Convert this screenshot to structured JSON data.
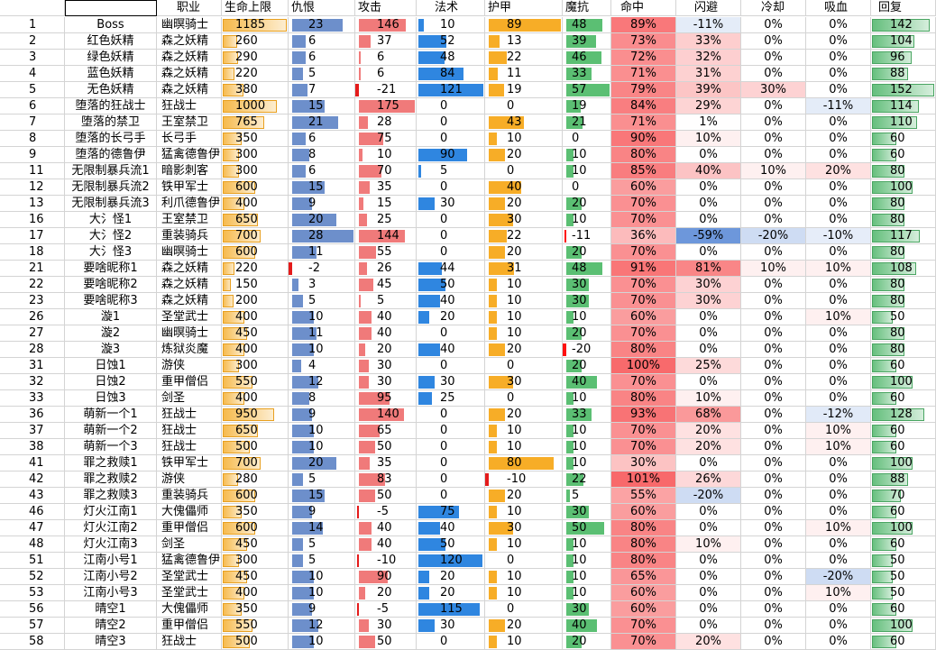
{
  "headers": [
    "",
    "",
    "职业",
    "生命上限",
    "仇恨",
    "攻击",
    "法术",
    "护甲",
    "魔抗",
    "命中",
    "闪避",
    "冷却",
    "吸血",
    "回复"
  ],
  "colors": {
    "hp": "#f6b94a",
    "threat": "#6d8fcb",
    "atk_pos": "#f07a7a",
    "atk_neg": "#e41b1b",
    "magic": "#2f86e0",
    "armor": "#f7ad27",
    "mres_pos": "#5bbf73",
    "mres_neg": "#ff1010",
    "pos_scale": "#f8696b",
    "neg_scale": "#5a8ad6",
    "regen": "#63be7b"
  },
  "rows": [
    {
      "id": "1",
      "name": "Boss",
      "cls": "幽暝骑士",
      "hp": 1185,
      "threat": 23,
      "atk": 146,
      "magic": 10,
      "armor": 89,
      "mres": 48,
      "hit": "89%",
      "hitv": 89,
      "dodge": "-11%",
      "dodgev": -11,
      "cd": "0%",
      "cdv": 0,
      "ls": "0%",
      "lsv": 0,
      "regen": 142
    },
    {
      "id": "2",
      "name": "红色妖精",
      "cls": "森之妖精",
      "hp": 260,
      "threat": 6,
      "atk": 37,
      "magic": 52,
      "armor": 13,
      "mres": 39,
      "hit": "73%",
      "hitv": 73,
      "dodge": "33%",
      "dodgev": 33,
      "cd": "0%",
      "cdv": 0,
      "ls": "0%",
      "lsv": 0,
      "regen": 104
    },
    {
      "id": "3",
      "name": "绿色妖精",
      "cls": "森之妖精",
      "hp": 290,
      "threat": 6,
      "atk": 6,
      "magic": 48,
      "armor": 22,
      "mres": 46,
      "hit": "72%",
      "hitv": 72,
      "dodge": "32%",
      "dodgev": 32,
      "cd": "0%",
      "cdv": 0,
      "ls": "0%",
      "lsv": 0,
      "regen": 96
    },
    {
      "id": "4",
      "name": "蓝色妖精",
      "cls": "森之妖精",
      "hp": 220,
      "threat": 5,
      "atk": 6,
      "magic": 84,
      "armor": 11,
      "mres": 33,
      "hit": "71%",
      "hitv": 71,
      "dodge": "31%",
      "dodgev": 31,
      "cd": "0%",
      "cdv": 0,
      "ls": "0%",
      "lsv": 0,
      "regen": 88
    },
    {
      "id": "5",
      "name": "无色妖精",
      "cls": "森之妖精",
      "hp": 380,
      "threat": 7,
      "atk": -21,
      "magic": 121,
      "armor": 19,
      "mres": 57,
      "hit": "79%",
      "hitv": 79,
      "dodge": "39%",
      "dodgev": 39,
      "cd": "30%",
      "cdv": 30,
      "ls": "0%",
      "lsv": 0,
      "regen": 152
    },
    {
      "id": "6",
      "name": "堕落的狂战士",
      "cls": "狂战士",
      "hp": 1000,
      "threat": 15,
      "atk": 175,
      "magic": 0,
      "armor": 0,
      "mres": 19,
      "hit": "84%",
      "hitv": 84,
      "dodge": "29%",
      "dodgev": 29,
      "cd": "0%",
      "cdv": 0,
      "ls": "-11%",
      "lsv": -11,
      "regen": 114
    },
    {
      "id": "7",
      "name": "堕落的禁卫",
      "cls": "王室禁卫",
      "hp": 765,
      "threat": 21,
      "atk": 28,
      "magic": 0,
      "armor": 43,
      "mres": 21,
      "hit": "71%",
      "hitv": 71,
      "dodge": "1%",
      "dodgev": 1,
      "cd": "0%",
      "cdv": 0,
      "ls": "0%",
      "lsv": 0,
      "regen": 110
    },
    {
      "id": "8",
      "name": "堕落的长弓手",
      "cls": "长弓手",
      "hp": 350,
      "threat": 6,
      "atk": 75,
      "magic": 0,
      "armor": 10,
      "mres": 0,
      "hit": "90%",
      "hitv": 90,
      "dodge": "10%",
      "dodgev": 10,
      "cd": "0%",
      "cdv": 0,
      "ls": "0%",
      "lsv": 0,
      "regen": 60
    },
    {
      "id": "9",
      "name": "堕落的德鲁伊",
      "cls": "猛禽德鲁伊",
      "hp": 300,
      "threat": 8,
      "atk": 10,
      "magic": 90,
      "armor": 20,
      "mres": 10,
      "hit": "80%",
      "hitv": 80,
      "dodge": "0%",
      "dodgev": 0,
      "cd": "0%",
      "cdv": 0,
      "ls": "0%",
      "lsv": 0,
      "regen": 60
    },
    {
      "id": "11",
      "name": "无限制暴兵流1",
      "cls": "暗影刺客",
      "hp": 300,
      "threat": 6,
      "atk": 70,
      "magic": 5,
      "armor": 0,
      "mres": 10,
      "hit": "85%",
      "hitv": 85,
      "dodge": "40%",
      "dodgev": 40,
      "cd": "10%",
      "cdv": 10,
      "ls": "20%",
      "lsv": 20,
      "regen": 80
    },
    {
      "id": "12",
      "name": "无限制暴兵流2",
      "cls": "铁甲军士",
      "hp": 600,
      "threat": 15,
      "atk": 35,
      "magic": 0,
      "armor": 40,
      "mres": 0,
      "hit": "60%",
      "hitv": 60,
      "dodge": "0%",
      "dodgev": 0,
      "cd": "0%",
      "cdv": 0,
      "ls": "0%",
      "lsv": 0,
      "regen": 100
    },
    {
      "id": "13",
      "name": "无限制暴兵流3",
      "cls": "利爪德鲁伊",
      "hp": 400,
      "threat": 9,
      "atk": 15,
      "magic": 30,
      "armor": 20,
      "mres": 20,
      "hit": "70%",
      "hitv": 70,
      "dodge": "0%",
      "dodgev": 0,
      "cd": "0%",
      "cdv": 0,
      "ls": "0%",
      "lsv": 0,
      "regen": 80
    },
    {
      "id": "16",
      "name": "大氵怪1",
      "cls": "王室禁卫",
      "hp": 650,
      "threat": 20,
      "atk": 25,
      "magic": 0,
      "armor": 30,
      "mres": 10,
      "hit": "70%",
      "hitv": 70,
      "dodge": "0%",
      "dodgev": 0,
      "cd": "0%",
      "cdv": 0,
      "ls": "0%",
      "lsv": 0,
      "regen": 80
    },
    {
      "id": "17",
      "name": "大氵怪2",
      "cls": "重装骑兵",
      "hp": 700,
      "threat": 28,
      "atk": 144,
      "magic": 0,
      "armor": 22,
      "mres": -11,
      "hit": "36%",
      "hitv": 36,
      "dodge": "-59%",
      "dodgev": -59,
      "cd": "-20%",
      "cdv": -20,
      "ls": "-10%",
      "lsv": -10,
      "regen": 117
    },
    {
      "id": "18",
      "name": "大氵怪3",
      "cls": "幽暝骑士",
      "hp": 600,
      "threat": 11,
      "atk": 55,
      "magic": 0,
      "armor": 20,
      "mres": 20,
      "hit": "70%",
      "hitv": 70,
      "dodge": "0%",
      "dodgev": 0,
      "cd": "0%",
      "cdv": 0,
      "ls": "0%",
      "lsv": 0,
      "regen": 80
    },
    {
      "id": "21",
      "name": "要啥昵称1",
      "cls": "森之妖精",
      "hp": 220,
      "threat": -2,
      "atk": 26,
      "magic": 44,
      "armor": 31,
      "mres": 48,
      "hit": "91%",
      "hitv": 91,
      "dodge": "81%",
      "dodgev": 81,
      "cd": "10%",
      "cdv": 10,
      "ls": "10%",
      "lsv": 10,
      "regen": 108
    },
    {
      "id": "22",
      "name": "要啥昵称2",
      "cls": "森之妖精",
      "hp": 150,
      "threat": 3,
      "atk": 45,
      "magic": 50,
      "armor": 10,
      "mres": 30,
      "hit": "70%",
      "hitv": 70,
      "dodge": "30%",
      "dodgev": 30,
      "cd": "0%",
      "cdv": 0,
      "ls": "0%",
      "lsv": 0,
      "regen": 80
    },
    {
      "id": "23",
      "name": "要啥昵称3",
      "cls": "森之妖精",
      "hp": 200,
      "threat": 5,
      "atk": 5,
      "magic": 40,
      "armor": 10,
      "mres": 30,
      "hit": "70%",
      "hitv": 70,
      "dodge": "30%",
      "dodgev": 30,
      "cd": "0%",
      "cdv": 0,
      "ls": "0%",
      "lsv": 0,
      "regen": 80
    },
    {
      "id": "26",
      "name": "漩1",
      "cls": "圣堂武士",
      "hp": 400,
      "threat": 10,
      "atk": 40,
      "magic": 20,
      "armor": 10,
      "mres": 10,
      "hit": "60%",
      "hitv": 60,
      "dodge": "0%",
      "dodgev": 0,
      "cd": "0%",
      "cdv": 0,
      "ls": "10%",
      "lsv": 10,
      "regen": 50
    },
    {
      "id": "27",
      "name": "漩2",
      "cls": "幽暝骑士",
      "hp": 450,
      "threat": 11,
      "atk": 40,
      "magic": 0,
      "armor": 10,
      "mres": 20,
      "hit": "70%",
      "hitv": 70,
      "dodge": "0%",
      "dodgev": 0,
      "cd": "0%",
      "cdv": 0,
      "ls": "0%",
      "lsv": 0,
      "regen": 80
    },
    {
      "id": "28",
      "name": "漩3",
      "cls": "炼狱炎魔",
      "hp": 400,
      "threat": 10,
      "atk": 20,
      "magic": 40,
      "armor": 20,
      "mres": -20,
      "hit": "80%",
      "hitv": 80,
      "dodge": "0%",
      "dodgev": 0,
      "cd": "0%",
      "cdv": 0,
      "ls": "0%",
      "lsv": 0,
      "regen": 80
    },
    {
      "id": "31",
      "name": "日蚀1",
      "cls": "游侠",
      "hp": 300,
      "threat": 4,
      "atk": 30,
      "magic": 0,
      "armor": 0,
      "mres": 20,
      "hit": "100%",
      "hitv": 100,
      "dodge": "25%",
      "dodgev": 25,
      "cd": "0%",
      "cdv": 0,
      "ls": "0%",
      "lsv": 0,
      "regen": 60
    },
    {
      "id": "32",
      "name": "日蚀2",
      "cls": "重甲僧侣",
      "hp": 550,
      "threat": 12,
      "atk": 30,
      "magic": 30,
      "armor": 30,
      "mres": 40,
      "hit": "70%",
      "hitv": 70,
      "dodge": "0%",
      "dodgev": 0,
      "cd": "0%",
      "cdv": 0,
      "ls": "0%",
      "lsv": 0,
      "regen": 100
    },
    {
      "id": "33",
      "name": "日蚀3",
      "cls": "剑圣",
      "hp": 400,
      "threat": 8,
      "atk": 95,
      "magic": 25,
      "armor": 0,
      "mres": 10,
      "hit": "80%",
      "hitv": 80,
      "dodge": "10%",
      "dodgev": 10,
      "cd": "0%",
      "cdv": 0,
      "ls": "0%",
      "lsv": 0,
      "regen": 60
    },
    {
      "id": "36",
      "name": "萌新一个1",
      "cls": "狂战士",
      "hp": 950,
      "threat": 9,
      "atk": 140,
      "magic": 0,
      "armor": 20,
      "mres": 33,
      "hit": "93%",
      "hitv": 93,
      "dodge": "68%",
      "dodgev": 68,
      "cd": "0%",
      "cdv": 0,
      "ls": "-12%",
      "lsv": -12,
      "regen": 128
    },
    {
      "id": "37",
      "name": "萌新一个2",
      "cls": "狂战士",
      "hp": 650,
      "threat": 10,
      "atk": 65,
      "magic": 0,
      "armor": 10,
      "mres": 10,
      "hit": "70%",
      "hitv": 70,
      "dodge": "20%",
      "dodgev": 20,
      "cd": "0%",
      "cdv": 0,
      "ls": "10%",
      "lsv": 10,
      "regen": 60
    },
    {
      "id": "38",
      "name": "萌新一个3",
      "cls": "狂战士",
      "hp": 500,
      "threat": 10,
      "atk": 50,
      "magic": 0,
      "armor": 10,
      "mres": 10,
      "hit": "70%",
      "hitv": 70,
      "dodge": "20%",
      "dodgev": 20,
      "cd": "0%",
      "cdv": 0,
      "ls": "10%",
      "lsv": 10,
      "regen": 60
    },
    {
      "id": "41",
      "name": "罪之救赎1",
      "cls": "铁甲军士",
      "hp": 700,
      "threat": 20,
      "atk": 35,
      "magic": 0,
      "armor": 80,
      "mres": 10,
      "hit": "30%",
      "hitv": 30,
      "dodge": "0%",
      "dodgev": 0,
      "cd": "0%",
      "cdv": 0,
      "ls": "0%",
      "lsv": 0,
      "regen": 100
    },
    {
      "id": "42",
      "name": "罪之救赎2",
      "cls": "游侠",
      "hp": 280,
      "threat": 5,
      "atk": 83,
      "magic": 0,
      "armor": -10,
      "mres": 22,
      "hit": "101%",
      "hitv": 101,
      "dodge": "26%",
      "dodgev": 26,
      "cd": "0%",
      "cdv": 0,
      "ls": "0%",
      "lsv": 0,
      "regen": 88
    },
    {
      "id": "43",
      "name": "罪之救赎3",
      "cls": "重装骑兵",
      "hp": 600,
      "threat": 15,
      "atk": 50,
      "magic": 0,
      "armor": 20,
      "mres": 5,
      "hit": "55%",
      "hitv": 55,
      "dodge": "-20%",
      "dodgev": -20,
      "cd": "0%",
      "cdv": 0,
      "ls": "0%",
      "lsv": 0,
      "regen": 70
    },
    {
      "id": "46",
      "name": "灯火江南1",
      "cls": "大傀儡师",
      "hp": 350,
      "threat": 9,
      "atk": -5,
      "magic": 75,
      "armor": 10,
      "mres": 30,
      "hit": "60%",
      "hitv": 60,
      "dodge": "0%",
      "dodgev": 0,
      "cd": "0%",
      "cdv": 0,
      "ls": "0%",
      "lsv": 0,
      "regen": 60
    },
    {
      "id": "47",
      "name": "灯火江南2",
      "cls": "重甲僧侣",
      "hp": 600,
      "threat": 14,
      "atk": 40,
      "magic": 40,
      "armor": 30,
      "mres": 50,
      "hit": "80%",
      "hitv": 80,
      "dodge": "0%",
      "dodgev": 0,
      "cd": "0%",
      "cdv": 0,
      "ls": "10%",
      "lsv": 10,
      "regen": 100
    },
    {
      "id": "48",
      "name": "灯火江南3",
      "cls": "剑圣",
      "hp": 450,
      "threat": 5,
      "atk": 40,
      "magic": 50,
      "armor": 10,
      "mres": 10,
      "hit": "80%",
      "hitv": 80,
      "dodge": "10%",
      "dodgev": 10,
      "cd": "0%",
      "cdv": 0,
      "ls": "0%",
      "lsv": 0,
      "regen": 60
    },
    {
      "id": "51",
      "name": "江南小号1",
      "cls": "猛禽德鲁伊",
      "hp": 300,
      "threat": 5,
      "atk": -10,
      "magic": 120,
      "armor": 0,
      "mres": 10,
      "hit": "80%",
      "hitv": 80,
      "dodge": "0%",
      "dodgev": 0,
      "cd": "0%",
      "cdv": 0,
      "ls": "0%",
      "lsv": 0,
      "regen": 50
    },
    {
      "id": "52",
      "name": "江南小号2",
      "cls": "圣堂武士",
      "hp": 450,
      "threat": 10,
      "atk": 90,
      "magic": 20,
      "armor": 10,
      "mres": 10,
      "hit": "65%",
      "hitv": 65,
      "dodge": "0%",
      "dodgev": 0,
      "cd": "0%",
      "cdv": 0,
      "ls": "-20%",
      "lsv": -20,
      "regen": 50
    },
    {
      "id": "53",
      "name": "江南小号3",
      "cls": "圣堂武士",
      "hp": 400,
      "threat": 10,
      "atk": 20,
      "magic": 20,
      "armor": 10,
      "mres": 10,
      "hit": "60%",
      "hitv": 60,
      "dodge": "0%",
      "dodgev": 0,
      "cd": "0%",
      "cdv": 0,
      "ls": "10%",
      "lsv": 10,
      "regen": 50
    },
    {
      "id": "56",
      "name": "晴空1",
      "cls": "大傀儡师",
      "hp": 350,
      "threat": 9,
      "atk": -5,
      "magic": 115,
      "armor": 0,
      "mres": 30,
      "hit": "60%",
      "hitv": 60,
      "dodge": "0%",
      "dodgev": 0,
      "cd": "0%",
      "cdv": 0,
      "ls": "0%",
      "lsv": 0,
      "regen": 60
    },
    {
      "id": "57",
      "name": "晴空2",
      "cls": "重甲僧侣",
      "hp": 550,
      "threat": 12,
      "atk": 30,
      "magic": 30,
      "armor": 20,
      "mres": 40,
      "hit": "70%",
      "hitv": 70,
      "dodge": "0%",
      "dodgev": 0,
      "cd": "0%",
      "cdv": 0,
      "ls": "0%",
      "lsv": 0,
      "regen": 100
    },
    {
      "id": "58",
      "name": "晴空3",
      "cls": "狂战士",
      "hp": 500,
      "threat": 10,
      "atk": 50,
      "magic": 0,
      "armor": 10,
      "mres": 20,
      "hit": "70%",
      "hitv": 70,
      "dodge": "20%",
      "dodgev": 20,
      "cd": "0%",
      "cdv": 0,
      "ls": "0%",
      "lsv": 0,
      "regen": 60
    }
  ]
}
